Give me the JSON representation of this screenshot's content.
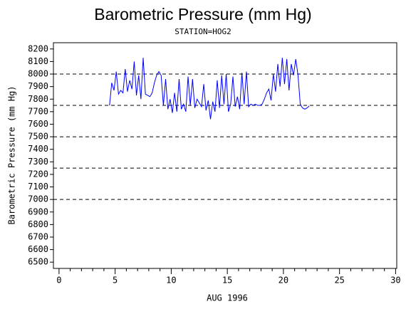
{
  "chart_data": {
    "type": "line",
    "title": "Barometric Pressure (mm Hg)",
    "subtitle": "STATION=HOG2",
    "x_label": "AUG 1996",
    "y_label": "Barometric Pressure (mm Hg)",
    "xlim": [
      -0.5,
      30.1
    ],
    "ylim": [
      6450,
      8250
    ],
    "xticks": [
      0,
      5,
      10,
      15,
      20,
      25,
      30
    ],
    "xminorticks": [
      1,
      2,
      3,
      4,
      6,
      7,
      8,
      9,
      11,
      12,
      13,
      14,
      16,
      17,
      18,
      19,
      21,
      22,
      23,
      24,
      26,
      27,
      28,
      29
    ],
    "yticks": [
      6500,
      6600,
      6700,
      6800,
      6900,
      7000,
      7100,
      7200,
      7300,
      7400,
      7500,
      7600,
      7700,
      7800,
      7900,
      8000,
      8100,
      8200
    ],
    "reference_lines": [
      7000,
      7250,
      7500,
      7750,
      8000
    ],
    "x": [
      4.5,
      4.7,
      4.9,
      5.1,
      5.3,
      5.5,
      5.7,
      5.9,
      6.1,
      6.3,
      6.5,
      6.7,
      6.9,
      7.1,
      7.3,
      7.5,
      7.7,
      7.9,
      8.1,
      8.3,
      8.5,
      8.7,
      8.9,
      9.1,
      9.3,
      9.5,
      9.7,
      9.9,
      10.1,
      10.3,
      10.5,
      10.7,
      10.9,
      11.1,
      11.3,
      11.5,
      11.7,
      11.9,
      12.1,
      12.3,
      12.5,
      12.7,
      12.9,
      13.1,
      13.3,
      13.5,
      13.7,
      13.9,
      14.1,
      14.3,
      14.5,
      14.7,
      14.9,
      15.1,
      15.3,
      15.5,
      15.7,
      15.9,
      16.1,
      16.3,
      16.5,
      16.7,
      16.9,
      17.1,
      17.3,
      17.5,
      17.7,
      17.9,
      18.1,
      18.3,
      18.5,
      18.7,
      18.9,
      19.1,
      19.3,
      19.5,
      19.7,
      19.9,
      20.1,
      20.3,
      20.5,
      20.7,
      20.9,
      21.1,
      21.3,
      21.5,
      21.7,
      21.9,
      22.1,
      22.3
    ],
    "series": [
      {
        "color": "#0000ff",
        "values": [
          7750,
          7930,
          7870,
          8020,
          7840,
          7870,
          7850,
          8040,
          7860,
          7950,
          7880,
          8100,
          7830,
          7990,
          7800,
          8130,
          7840,
          7830,
          7820,
          7850,
          7930,
          7990,
          8020,
          7990,
          7750,
          7960,
          7720,
          7800,
          7690,
          7850,
          7700,
          7960,
          7720,
          7760,
          7700,
          7980,
          7750,
          7960,
          7730,
          7800,
          7770,
          7740,
          7920,
          7710,
          7790,
          7640,
          7780,
          7700,
          7950,
          7730,
          7990,
          7760,
          8000,
          7700,
          7760,
          7980,
          7740,
          7820,
          7720,
          8010,
          7760,
          8020,
          7740,
          7760,
          7750,
          7760,
          7750,
          7750,
          7760,
          7800,
          7850,
          7880,
          7790,
          8000,
          7860,
          8080,
          7900,
          8130,
          7920,
          8120,
          7870,
          8080,
          7990,
          8120,
          7990,
          7760,
          7730,
          7720,
          7730,
          7745
        ]
      }
    ]
  }
}
